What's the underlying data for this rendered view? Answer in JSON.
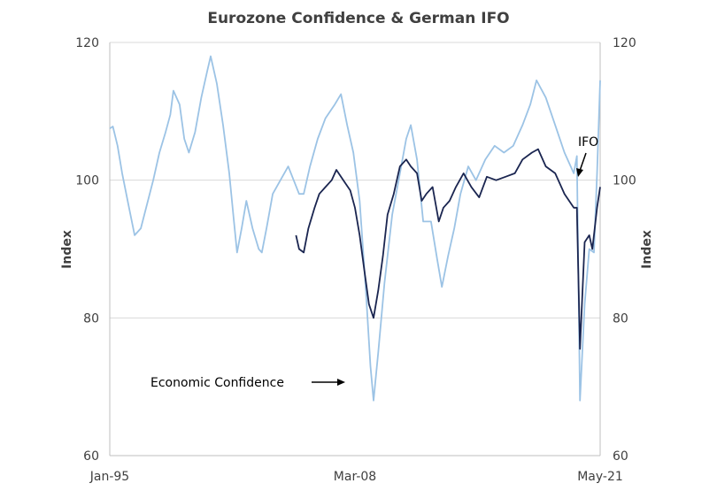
{
  "chart_data": {
    "type": "line",
    "title": "Eurozone Confidence & German IFO",
    "ylabel_left": "Index",
    "ylabel_right": "Index",
    "ylim": [
      60,
      120
    ],
    "y_ticks": [
      "60",
      "80",
      "100",
      "120"
    ],
    "x_range": [
      "1995-01",
      "2021-05"
    ],
    "x_tick_labels": [
      "Jan-95",
      "Mar-08",
      "May-21"
    ],
    "grid": "horizontal",
    "colors": {
      "economic_confidence": "#9cc3e5",
      "ifo": "#1a2550",
      "grid": "#d9d9d9",
      "axis": "#bfbfbf"
    },
    "annotations": [
      {
        "text": "Economic  Confidence",
        "series": "Economic Confidence"
      },
      {
        "text": "IFO",
        "series": "IFO"
      }
    ],
    "series": [
      {
        "name": "Economic Confidence",
        "points": [
          [
            "1995-01",
            107.5
          ],
          [
            "1995-03",
            107.8
          ],
          [
            "1995-06",
            105
          ],
          [
            "1995-09",
            101
          ],
          [
            "1996-01",
            96.5
          ],
          [
            "1996-05",
            92
          ],
          [
            "1996-09",
            93
          ],
          [
            "1997-01",
            96.5
          ],
          [
            "1997-05",
            100
          ],
          [
            "1997-09",
            104
          ],
          [
            "1998-01",
            107
          ],
          [
            "1998-04",
            109.5
          ],
          [
            "1998-06",
            113
          ],
          [
            "1998-10",
            111
          ],
          [
            "1999-01",
            106
          ],
          [
            "1999-04",
            104
          ],
          [
            "1999-08",
            107
          ],
          [
            "1999-12",
            112
          ],
          [
            "2000-04",
            116
          ],
          [
            "2000-06",
            118
          ],
          [
            "2000-10",
            114
          ],
          [
            "2001-02",
            108
          ],
          [
            "2001-06",
            101
          ],
          [
            "2001-09",
            94
          ],
          [
            "2001-11",
            89.5
          ],
          [
            "2002-02",
            93
          ],
          [
            "2002-05",
            97
          ],
          [
            "2002-09",
            93
          ],
          [
            "2003-01",
            90
          ],
          [
            "2003-03",
            89.5
          ],
          [
            "2003-06",
            93
          ],
          [
            "2003-10",
            98
          ],
          [
            "2004-03",
            100
          ],
          [
            "2004-08",
            102
          ],
          [
            "2005-03",
            98
          ],
          [
            "2005-06",
            98
          ],
          [
            "2005-10",
            102
          ],
          [
            "2006-03",
            106
          ],
          [
            "2006-08",
            109
          ],
          [
            "2007-02",
            111
          ],
          [
            "2007-06",
            112.5
          ],
          [
            "2007-10",
            108
          ],
          [
            "2008-02",
            104
          ],
          [
            "2008-06",
            97
          ],
          [
            "2008-10",
            84
          ],
          [
            "2009-01",
            73
          ],
          [
            "2009-03",
            68
          ],
          [
            "2009-06",
            75
          ],
          [
            "2009-10",
            85
          ],
          [
            "2010-03",
            95
          ],
          [
            "2010-08",
            101
          ],
          [
            "2010-12",
            106
          ],
          [
            "2011-03",
            108
          ],
          [
            "2011-07",
            103
          ],
          [
            "2011-11",
            94
          ],
          [
            "2012-04",
            94
          ],
          [
            "2012-08",
            88.5
          ],
          [
            "2012-11",
            84.5
          ],
          [
            "2013-03",
            89
          ],
          [
            "2013-07",
            93
          ],
          [
            "2013-11",
            98
          ],
          [
            "2014-04",
            102
          ],
          [
            "2014-09",
            100
          ],
          [
            "2015-03",
            103
          ],
          [
            "2015-09",
            105
          ],
          [
            "2016-03",
            104
          ],
          [
            "2016-09",
            105
          ],
          [
            "2017-03",
            108
          ],
          [
            "2017-08",
            111
          ],
          [
            "2017-12",
            114.5
          ],
          [
            "2018-06",
            112
          ],
          [
            "2018-12",
            108
          ],
          [
            "2019-06",
            104
          ],
          [
            "2019-12",
            101
          ],
          [
            "2020-02",
            103.5
          ],
          [
            "2020-04",
            68
          ],
          [
            "2020-07",
            82
          ],
          [
            "2020-10",
            90
          ],
          [
            "2021-01",
            89.5
          ],
          [
            "2021-03",
            101
          ],
          [
            "2021-05",
            114.5
          ]
        ]
      },
      {
        "name": "IFO",
        "points": [
          [
            "2005-01",
            92
          ],
          [
            "2005-03",
            90
          ],
          [
            "2005-06",
            89.5
          ],
          [
            "2005-09",
            93
          ],
          [
            "2006-01",
            96
          ],
          [
            "2006-04",
            98
          ],
          [
            "2006-08",
            99
          ],
          [
            "2006-12",
            100
          ],
          [
            "2007-03",
            101.5
          ],
          [
            "2007-06",
            100.5
          ],
          [
            "2007-09",
            99.5
          ],
          [
            "2007-12",
            98.5
          ],
          [
            "2008-03",
            96
          ],
          [
            "2008-06",
            92
          ],
          [
            "2008-09",
            87
          ],
          [
            "2008-12",
            82
          ],
          [
            "2009-03",
            80
          ],
          [
            "2009-06",
            84
          ],
          [
            "2009-09",
            89
          ],
          [
            "2009-12",
            95
          ],
          [
            "2010-04",
            98
          ],
          [
            "2010-08",
            102
          ],
          [
            "2010-12",
            103
          ],
          [
            "2011-03",
            102
          ],
          [
            "2011-07",
            101
          ],
          [
            "2011-10",
            97
          ],
          [
            "2012-01",
            98
          ],
          [
            "2012-05",
            99
          ],
          [
            "2012-09",
            94
          ],
          [
            "2012-12",
            96
          ],
          [
            "2013-04",
            97
          ],
          [
            "2013-08",
            99
          ],
          [
            "2014-01",
            101
          ],
          [
            "2014-06",
            99
          ],
          [
            "2014-11",
            97.5
          ],
          [
            "2015-04",
            100.5
          ],
          [
            "2015-10",
            100
          ],
          [
            "2016-04",
            100.5
          ],
          [
            "2016-10",
            101
          ],
          [
            "2017-03",
            103
          ],
          [
            "2017-09",
            104
          ],
          [
            "2018-01",
            104.5
          ],
          [
            "2018-06",
            102
          ],
          [
            "2018-12",
            101
          ],
          [
            "2019-06",
            98
          ],
          [
            "2019-12",
            96
          ],
          [
            "2020-02",
            96
          ],
          [
            "2020-04",
            75.5
          ],
          [
            "2020-07",
            91
          ],
          [
            "2020-10",
            92
          ],
          [
            "2020-12",
            90
          ],
          [
            "2021-03",
            96
          ],
          [
            "2021-05",
            99
          ]
        ]
      }
    ]
  }
}
